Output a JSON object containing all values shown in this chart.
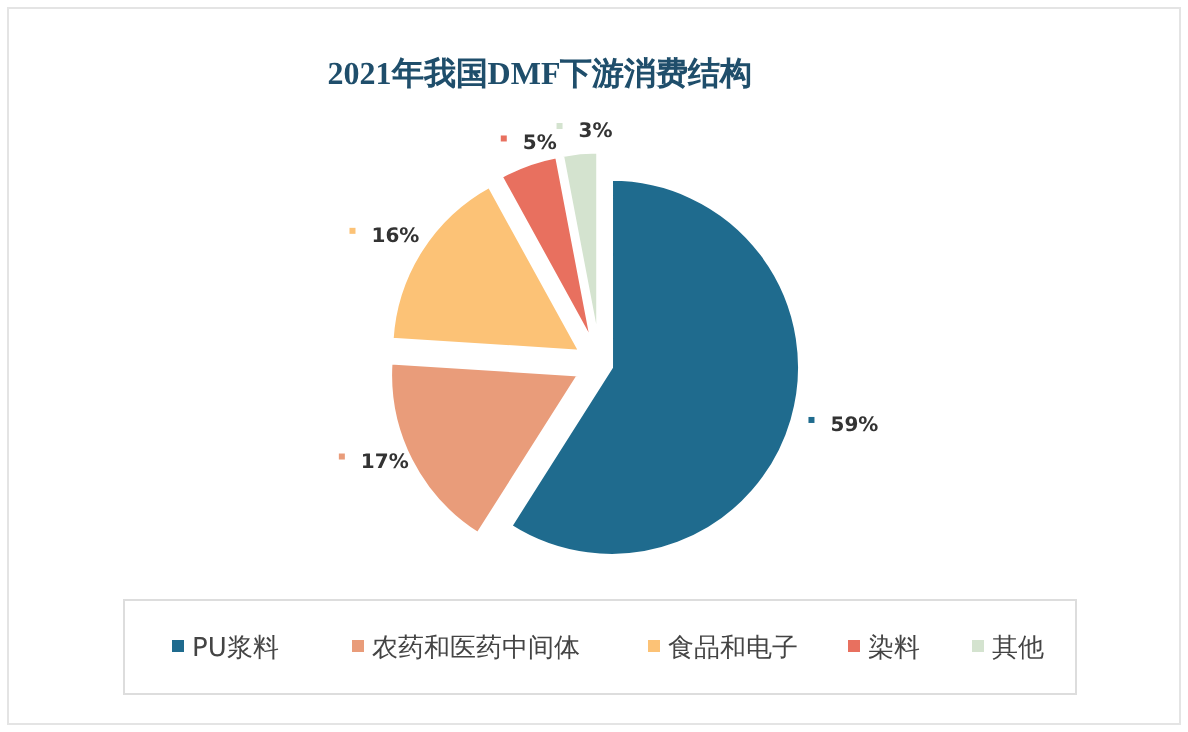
{
  "chart_data": {
    "type": "pie",
    "title": "2021年我国DMF下游消费结构",
    "categories": [
      "PU浆料",
      "农药和医药中间体",
      "食品和电子",
      "染料",
      "其他"
    ],
    "values": [
      59,
      17,
      16,
      5,
      3
    ],
    "colors": [
      "#1f6b8e",
      "#e99c7a",
      "#fcc276",
      "#e8705f",
      "#d4e3cf"
    ],
    "value_labels": [
      "59%",
      "17%",
      "16%",
      "5%",
      "3%"
    ],
    "legend": "bottom"
  }
}
